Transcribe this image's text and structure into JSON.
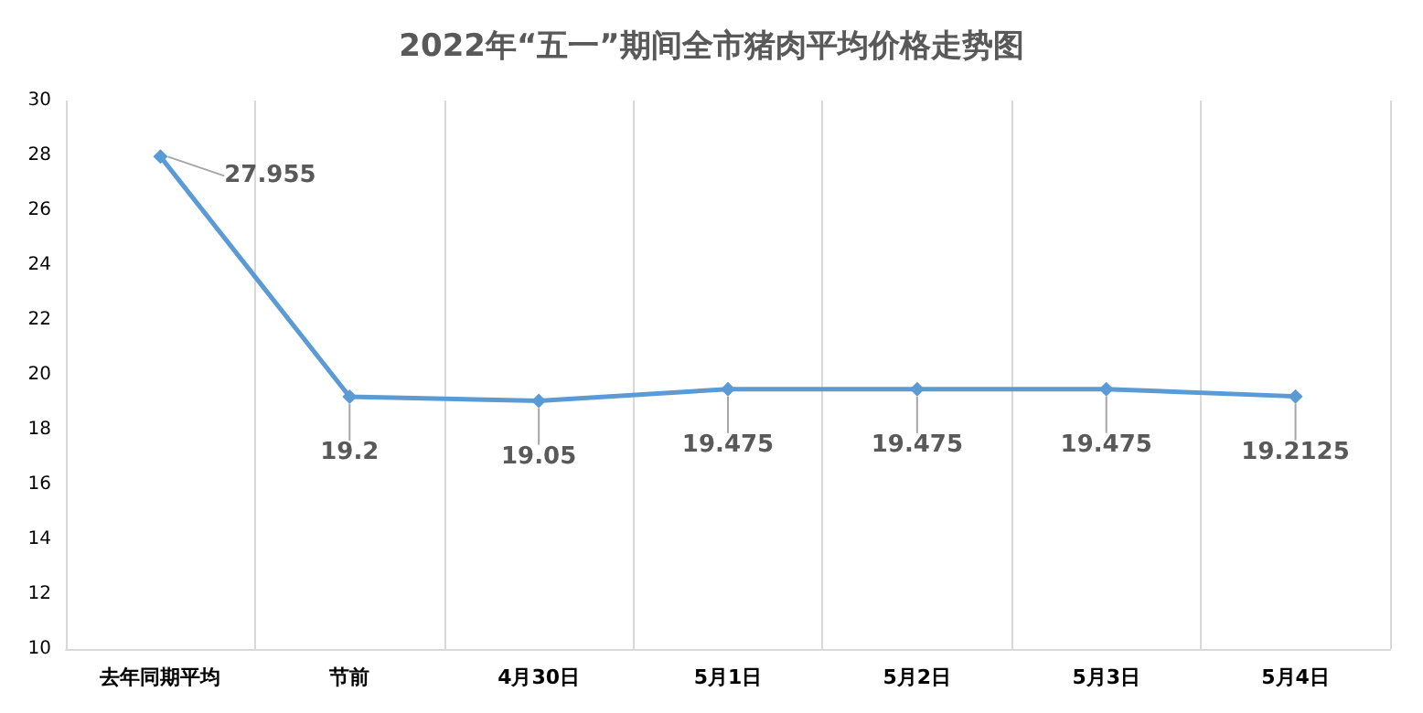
{
  "chart_data": {
    "type": "line",
    "title": "2022年“五一”期间全市猪肉平均价格走势图",
    "categories": [
      "去年同期平均",
      "节前",
      "4月30日",
      "5月1日",
      "5月2日",
      "5月3日",
      "5月4日"
    ],
    "series": [
      {
        "color": "#5b9bd5",
        "values": [
          27.955,
          19.2,
          19.05,
          19.475,
          19.475,
          19.475,
          19.2125
        ]
      }
    ],
    "ylim": [
      10,
      30
    ],
    "yticks": [
      10,
      12,
      14,
      16,
      18,
      20,
      22,
      24,
      26,
      28,
      30
    ],
    "grid": "x",
    "marker": "diamond",
    "line_style": "solid",
    "data_labels": true
  }
}
